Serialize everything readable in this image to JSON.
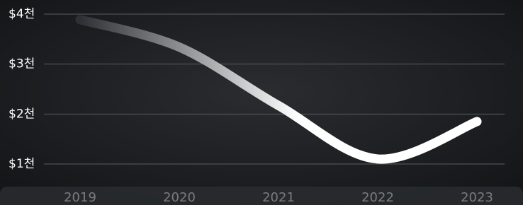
{
  "chart_data": {
    "type": "line",
    "categories": [
      "2019",
      "2020",
      "2021",
      "2022",
      "2023"
    ],
    "values": [
      3890,
      3340,
      2170,
      1100,
      1850
    ],
    "color_start": "#2e3035",
    "color_end": "#ffffff",
    "ylim": [
      1000,
      4000
    ],
    "yticks": [
      {
        "value": 1000,
        "label": "$1천"
      },
      {
        "value": 2000,
        "label": "$2천"
      },
      {
        "value": 3000,
        "label": "$3천"
      },
      {
        "value": 4000,
        "label": "$4천"
      }
    ],
    "grid": true
  }
}
